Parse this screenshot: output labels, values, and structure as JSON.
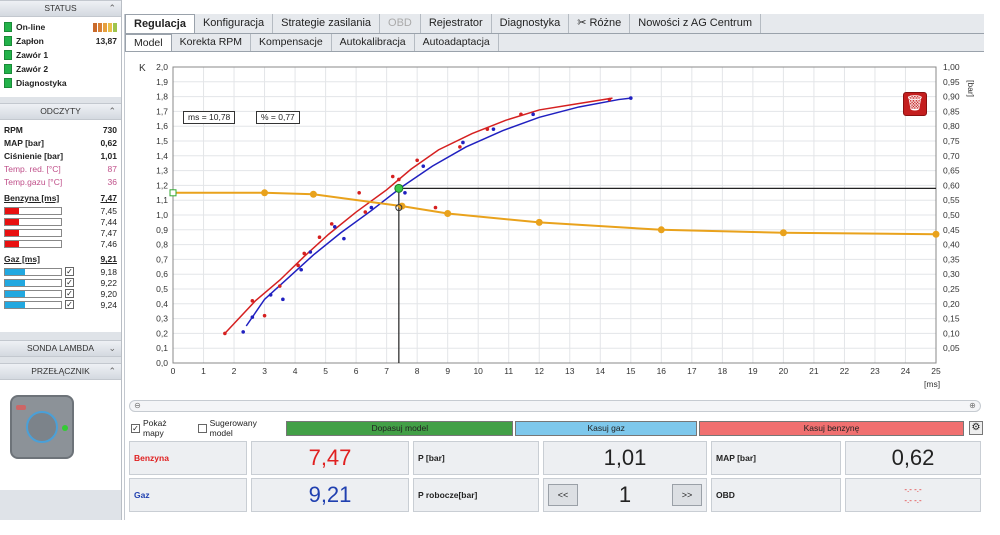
{
  "left": {
    "status_title": "STATUS",
    "status_items": [
      {
        "label": "On-line",
        "value": "",
        "bars": [
          "#c96a2b",
          "#d98035",
          "#e6a03f",
          "#e9c04a",
          "#9fc44c"
        ]
      },
      {
        "label": "Zapłon",
        "value": "13,87"
      },
      {
        "label": "Zawór 1",
        "value": ""
      },
      {
        "label": "Zawór 2",
        "value": ""
      },
      {
        "label": "Diagnostyka",
        "value": ""
      }
    ],
    "odczyty_title": "ODCZYTY",
    "odczyty": [
      {
        "label": "RPM",
        "value": "730"
      },
      {
        "label": "MAP [bar]",
        "value": "0,62"
      },
      {
        "label": "Ciśnienie [bar]",
        "value": "1,01"
      },
      {
        "label": "Temp. red. [°C]",
        "value": "87"
      },
      {
        "label": "Temp.gazu [°C]",
        "value": "36"
      }
    ],
    "benzyna_title": "Benzyna [ms]",
    "benzyna_value": "7,47",
    "benzyna_rows": [
      {
        "value": "7,45",
        "fill": 0.25
      },
      {
        "value": "7,44",
        "fill": 0.25
      },
      {
        "value": "7,47",
        "fill": 0.25
      },
      {
        "value": "7,46",
        "fill": 0.25
      }
    ],
    "gaz_title": "Gaz [ms]",
    "gaz_value": "9,21",
    "gaz_rows": [
      {
        "value": "9,18",
        "fill": 0.36
      },
      {
        "value": "9,22",
        "fill": 0.36
      },
      {
        "value": "9,20",
        "fill": 0.36
      },
      {
        "value": "9,24",
        "fill": 0.36
      }
    ],
    "sonda_title": "SONDA LAMBDA",
    "przelacznik_title": "PRZEŁĄCZNIK",
    "chevron_down": "⌄",
    "chevron_up": "⌃",
    "checkmark": "✓"
  },
  "tabs_top": [
    {
      "label": "Regulacja",
      "state": "active"
    },
    {
      "label": "Konfiguracja",
      "state": ""
    },
    {
      "label": "Strategie zasilania",
      "state": ""
    },
    {
      "label": "OBD",
      "state": "disabled"
    },
    {
      "label": "Rejestrator",
      "state": ""
    },
    {
      "label": "Diagnostyka",
      "state": ""
    },
    {
      "label": "✂ Różne",
      "state": ""
    },
    {
      "label": "Nowości z AG Centrum",
      "state": ""
    }
  ],
  "tabs_sub": [
    {
      "label": "Model",
      "state": "active"
    },
    {
      "label": "Korekta RPM",
      "state": ""
    },
    {
      "label": "Kompensacje",
      "state": ""
    },
    {
      "label": "Autokalibracja",
      "state": ""
    },
    {
      "label": "Autoadaptacja",
      "state": ""
    }
  ],
  "chart_data": {
    "type": "line",
    "xlabel": "[ms]",
    "ylabel_left": "K",
    "ylabel_right": "[bar]",
    "xlim": [
      0,
      25
    ],
    "ylim_left": [
      0,
      2.0
    ],
    "ylim_right": [
      0.05,
      1.0
    ],
    "x_ticks": [
      0,
      1,
      2,
      3,
      4,
      5,
      6,
      7,
      8,
      9,
      10,
      11,
      12,
      13,
      14,
      15,
      16,
      17,
      18,
      19,
      20,
      21,
      22,
      23,
      24,
      25
    ],
    "y_ticks_left": [
      "0,0",
      "0,1",
      "0,2",
      "0,3",
      "0,4",
      "0,5",
      "0,6",
      "0,7",
      "0,8",
      "0,9",
      "1,0",
      "1,1",
      "1,2",
      "1,3",
      "1,4",
      "1,5",
      "1,6",
      "1,7",
      "1,8",
      "1,9",
      "2,0"
    ],
    "y_ticks_right": [
      "0,05",
      "0,10",
      "0,15",
      "0,20",
      "0,25",
      "0,30",
      "0,35",
      "0,40",
      "0,45",
      "0,50",
      "0,55",
      "0,60",
      "0,65",
      "0,70",
      "0,75",
      "0,80",
      "0,85",
      "0,90",
      "0,95",
      "1,00"
    ],
    "grid": true,
    "annotations": {
      "ms": "ms = 10,78",
      "pct": "% = 0,77"
    },
    "series": [
      {
        "color": "#d52020",
        "x": [
          1.7,
          2.7,
          3.5,
          4.3,
          5.1,
          6.0,
          7.0,
          7.8,
          8.7,
          9.8,
          10.9,
          12.0,
          13.2,
          14.4
        ],
        "y": [
          0.2,
          0.42,
          0.56,
          0.72,
          0.87,
          1.02,
          1.17,
          1.31,
          1.44,
          1.55,
          1.64,
          1.71,
          1.75,
          1.79
        ]
      },
      {
        "color": "#2020c0",
        "x": [
          2.4,
          3.0,
          3.8,
          4.6,
          5.5,
          6.5,
          7.5,
          8.5,
          9.6,
          10.8,
          12.0,
          13.3,
          14.6,
          15.0
        ],
        "y": [
          0.25,
          0.43,
          0.58,
          0.73,
          0.88,
          1.03,
          1.19,
          1.33,
          1.46,
          1.57,
          1.66,
          1.73,
          1.78,
          1.79
        ]
      },
      {
        "color": "#e9a21c",
        "x": [
          0,
          3,
          4.6,
          7.5,
          9,
          12,
          16,
          20,
          25
        ],
        "y": [
          1.15,
          1.15,
          1.14,
          1.06,
          1.01,
          0.95,
          0.9,
          0.88,
          0.87
        ]
      }
    ],
    "scatter_red": {
      "x": [
        1.7,
        2.6,
        3.0,
        3.5,
        4.1,
        4.3,
        4.8,
        5.2,
        6.1,
        6.3,
        7.2,
        7.4,
        8.0,
        8.6,
        9.4,
        10.3,
        11.4,
        14.3
      ],
      "y": [
        0.2,
        0.42,
        0.32,
        0.52,
        0.66,
        0.74,
        0.85,
        0.94,
        1.15,
        1.02,
        1.26,
        1.24,
        1.37,
        1.05,
        1.46,
        1.58,
        1.68,
        1.78
      ]
    },
    "scatter_blue": {
      "x": [
        2.3,
        2.6,
        3.2,
        3.6,
        4.2,
        4.5,
        5.3,
        5.6,
        6.5,
        7.4,
        7.6,
        8.2,
        9.5,
        10.5,
        11.8,
        15.0
      ],
      "y": [
        0.21,
        0.31,
        0.46,
        0.43,
        0.63,
        0.75,
        0.92,
        0.84,
        1.05,
        1.18,
        1.15,
        1.33,
        1.49,
        1.58,
        1.68,
        1.79
      ]
    },
    "operating_point": {
      "x": 7.4,
      "y": 1.18
    },
    "crosshair_y": 1.18,
    "hollow_point": {
      "x": 7.4,
      "y": 1.05
    },
    "map_start_value": 1.15
  },
  "bottom": {
    "pokaz_mapy": "Pokaż mapy",
    "sugerowany_model": "Sugerowany model",
    "dopasuj": "Dopasuj model",
    "kasuj_gaz": "Kasuj gaz",
    "kasuj_benzyne": "Kasuj benzynę",
    "benzyna_label": "Benzyna",
    "benzyna_value": "7,47",
    "gaz_label": "Gaz",
    "gaz_value": "9,21",
    "p_label": "P [bar]",
    "p_value": "1,01",
    "p_robocze_label": "P robocze[bar]",
    "p_robocze_value": "1",
    "map_label": "MAP [bar]",
    "map_value": "0,62",
    "obd_label": "OBD",
    "obd_value1": "-.- -.-",
    "obd_value2": "-.- -.-",
    "prev": "<<",
    "next": ">>"
  },
  "colors": {
    "benzyna": "#e02020",
    "gaz": "#2040b0",
    "green_btn": "#43a047",
    "blue_btn": "#7ec8ec",
    "red_btn": "#f07070",
    "bar_red": "#e81010",
    "bar_blue": "#22a8e0"
  }
}
